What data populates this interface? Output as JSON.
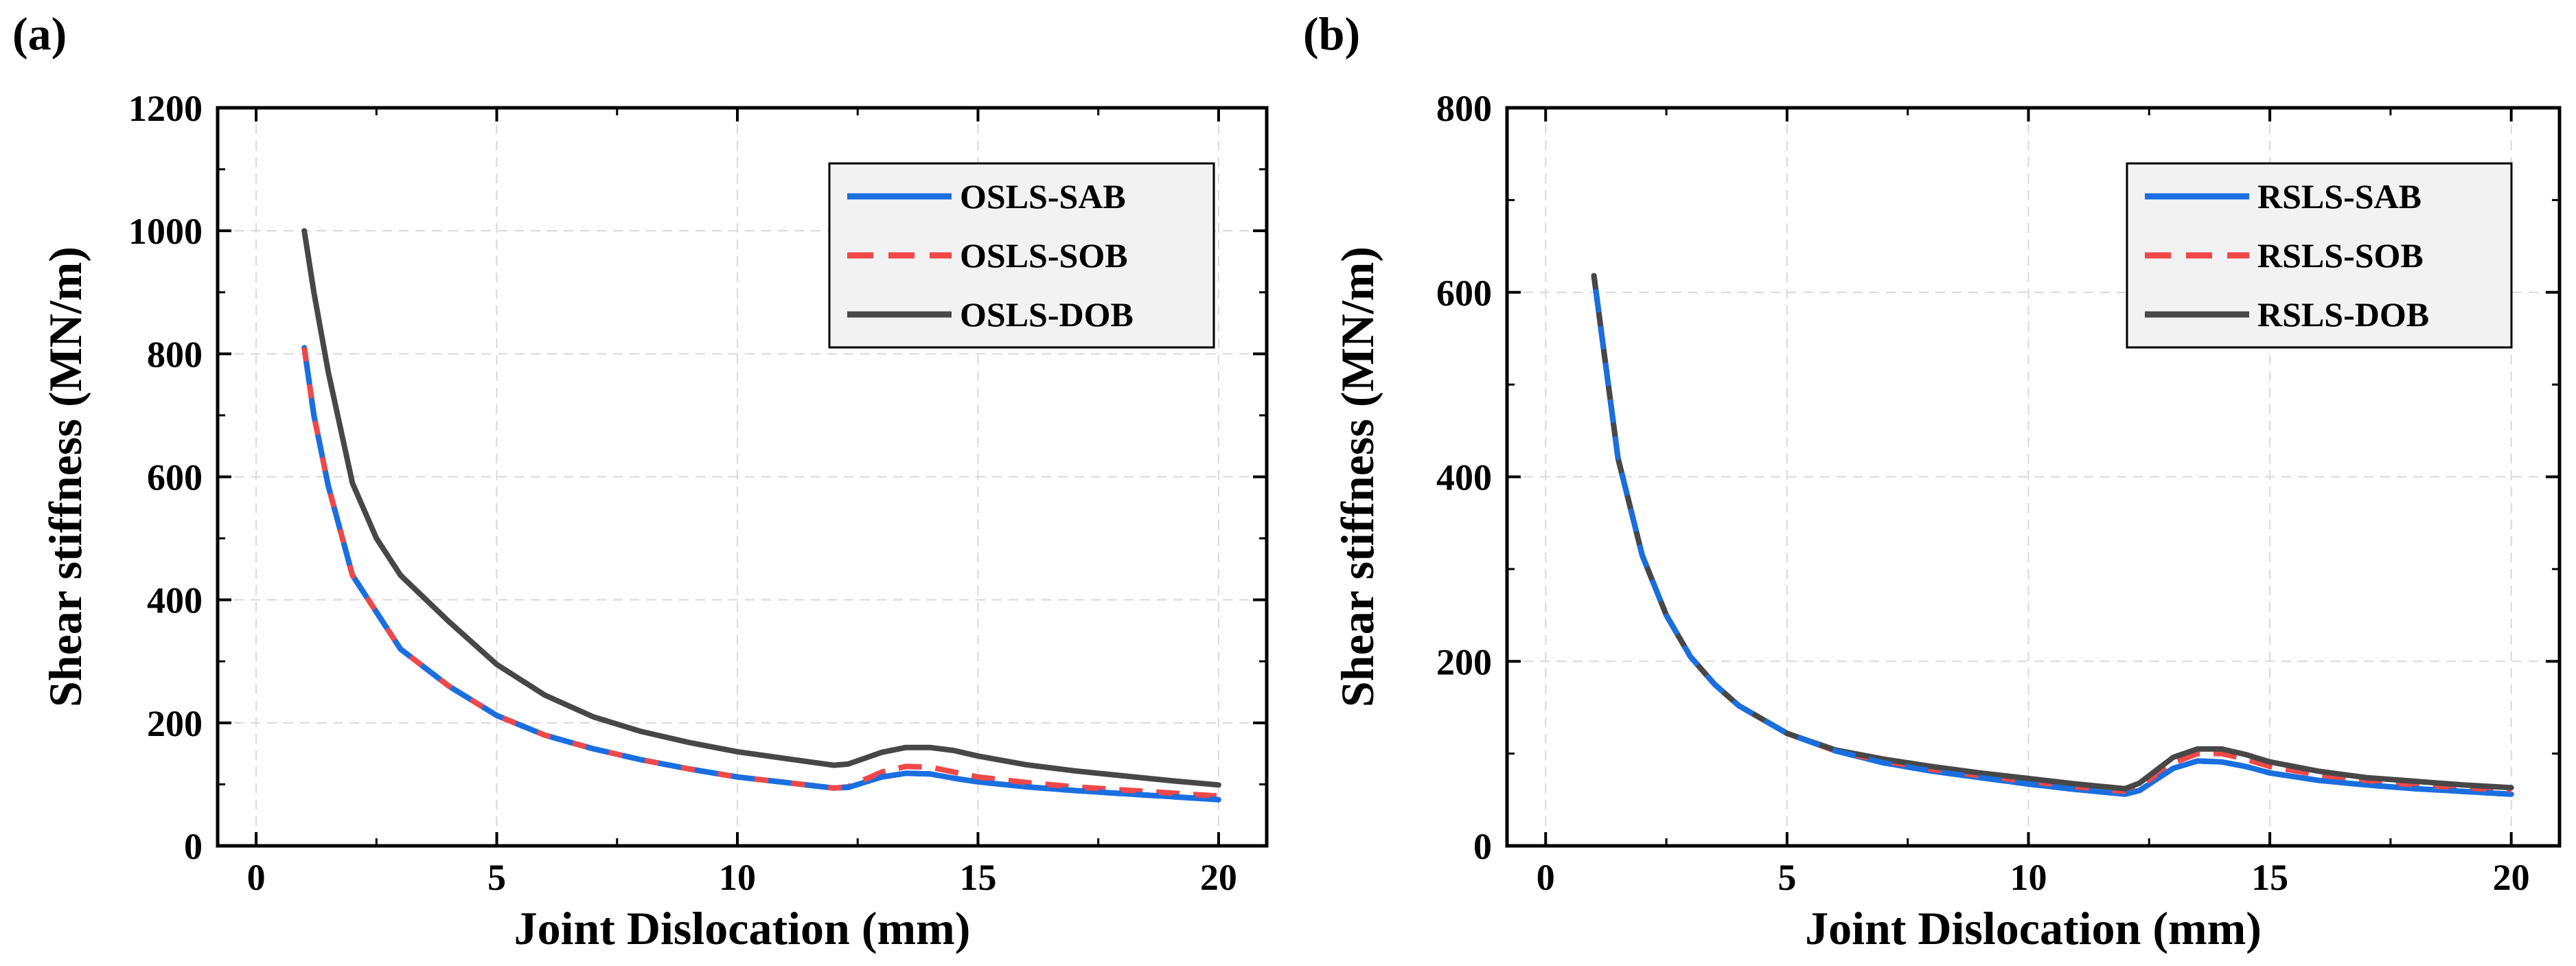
{
  "chart_data": [
    {
      "panel_label": "(a)",
      "type": "line",
      "xlabel": "Joint Dislocation (mm)",
      "ylabel": "Shear stiffness (MN/m)",
      "xlim": [
        -0.8,
        21
      ],
      "ylim": [
        0,
        1200
      ],
      "xticks": [
        0,
        5,
        10,
        15,
        20
      ],
      "yticks": [
        0,
        200,
        400,
        600,
        800,
        1000,
        1200
      ],
      "xtick_labels": [
        "0",
        "5",
        "10",
        "15",
        "20"
      ],
      "ytick_labels": [
        "0",
        "200",
        "400",
        "600",
        "800",
        "1000",
        "1200"
      ],
      "grid": true,
      "legend": "top-right",
      "series": [
        {
          "name": "OSLS-SAB",
          "color": "#1a6fe0",
          "style": "solid",
          "x": [
            1,
            1.2,
            1.5,
            2,
            2.5,
            3,
            4,
            5,
            6,
            7,
            8,
            9,
            10,
            11,
            12,
            12.3,
            13,
            13.5,
            14,
            14.5,
            15,
            16,
            17,
            18,
            19,
            20
          ],
          "y": [
            810,
            700,
            585,
            440,
            380,
            320,
            260,
            212,
            180,
            158,
            140,
            125,
            112,
            103,
            94,
            95,
            112,
            118,
            117,
            110,
            104,
            96,
            90,
            85,
            80,
            75
          ]
        },
        {
          "name": "OSLS-SOB",
          "color": "#f04848",
          "style": "dashed",
          "x": [
            1,
            1.2,
            1.5,
            2,
            2.5,
            3,
            4,
            5,
            6,
            7,
            8,
            9,
            10,
            11,
            12,
            12.3,
            13,
            13.5,
            14,
            14.5,
            15,
            16,
            17,
            18,
            19,
            20
          ],
          "y": [
            810,
            700,
            585,
            440,
            380,
            320,
            260,
            212,
            180,
            158,
            140,
            125,
            112,
            103,
            94,
            96,
            120,
            129,
            128,
            120,
            112,
            103,
            96,
            91,
            86,
            81
          ]
        },
        {
          "name": "OSLS-DOB",
          "color": "#474747",
          "style": "solid",
          "x": [
            1,
            1.2,
            1.5,
            2,
            2.5,
            3,
            4,
            5,
            6,
            7,
            8,
            9,
            10,
            11,
            12,
            12.3,
            13,
            13.5,
            14,
            14.5,
            15,
            16,
            17,
            18,
            19,
            20
          ],
          "y": [
            1000,
            900,
            770,
            590,
            500,
            440,
            365,
            295,
            245,
            210,
            186,
            168,
            153,
            142,
            131,
            133,
            152,
            160,
            160,
            155,
            146,
            132,
            122,
            114,
            106,
            99
          ]
        }
      ]
    },
    {
      "panel_label": "(b)",
      "type": "line",
      "xlabel": "Joint Dislocation (mm)",
      "ylabel": "Shear stiffness (MN/m)",
      "xlim": [
        -0.8,
        21
      ],
      "ylim": [
        0,
        800
      ],
      "xticks": [
        0,
        5,
        10,
        15,
        20
      ],
      "yticks": [
        0,
        200,
        400,
        600,
        800
      ],
      "xtick_labels": [
        "0",
        "5",
        "10",
        "15",
        "20"
      ],
      "ytick_labels": [
        "0",
        "200",
        "400",
        "600",
        "800"
      ],
      "grid": true,
      "legend": "top-right",
      "series": [
        {
          "name": "RSLS-SAB",
          "color": "#1a6fe0",
          "style": "solid",
          "x": [
            1,
            1.5,
            2,
            2.5,
            3,
            3.5,
            4,
            5,
            6,
            7,
            8,
            9,
            10,
            11,
            12,
            12.3,
            13,
            13.5,
            14,
            14.5,
            15,
            16,
            17,
            18,
            19,
            20
          ],
          "y": [
            618,
            420,
            315,
            250,
            205,
            175,
            152,
            122,
            103,
            90,
            81,
            74,
            67,
            61,
            56,
            60,
            84,
            92,
            91,
            86,
            79,
            71,
            66,
            62,
            59,
            56
          ]
        },
        {
          "name": "RSLS-SOB",
          "color": "#f04848",
          "style": "dashed",
          "x": [
            1,
            1.5,
            2,
            2.5,
            3,
            3.5,
            4,
            5,
            6,
            7,
            8,
            9,
            10,
            11,
            12,
            12.3,
            13,
            13.5,
            14,
            14.5,
            15,
            16,
            17,
            18,
            19,
            20
          ],
          "y": [
            618,
            420,
            315,
            250,
            205,
            175,
            152,
            122,
            103,
            92,
            83,
            76,
            70,
            64,
            59,
            64,
            90,
            100,
            100,
            94,
            86,
            77,
            71,
            66,
            63,
            60
          ]
        },
        {
          "name": "RSLS-DOB",
          "color": "#474747",
          "style": "solid",
          "x": [
            1,
            1.5,
            2,
            2.5,
            3,
            3.5,
            4,
            5,
            6,
            7,
            8,
            9,
            10,
            11,
            12,
            12.3,
            13,
            13.5,
            14,
            14.5,
            15,
            16,
            17,
            18,
            19,
            20
          ],
          "y": [
            618,
            420,
            315,
            250,
            205,
            175,
            152,
            122,
            104,
            94,
            86,
            79,
            73,
            67,
            62,
            68,
            96,
            105,
            105,
            99,
            91,
            81,
            74,
            70,
            66,
            63
          ]
        }
      ]
    }
  ]
}
